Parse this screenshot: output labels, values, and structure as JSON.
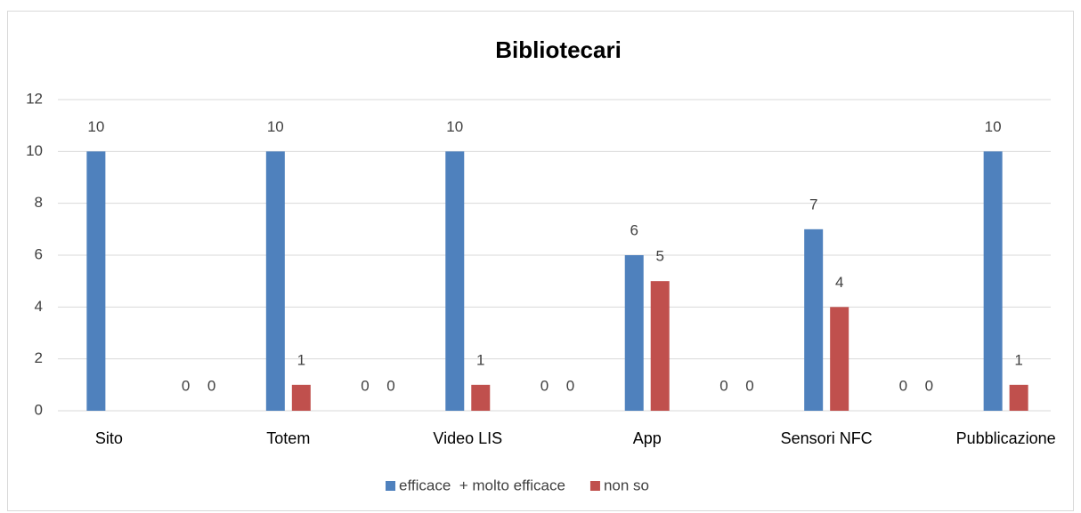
{
  "chart_data": {
    "type": "bar",
    "title": "Bibliotecari",
    "categories": [
      "Sito",
      null,
      "Totem",
      null,
      "Video LIS",
      null,
      "App",
      null,
      "Sensori NFC",
      null,
      "Pubblicazione"
    ],
    "series": [
      {
        "name": "efficace  + molto efficace",
        "color": "#4f81bd",
        "values": [
          10,
          0,
          10,
          0,
          10,
          0,
          6,
          0,
          7,
          0,
          10
        ]
      },
      {
        "name": "non so",
        "color": "#c0504d",
        "values": [
          null,
          0,
          1,
          0,
          1,
          0,
          5,
          0,
          4,
          0,
          1
        ]
      }
    ],
    "ylim": [
      0,
      12
    ],
    "yticks": [
      0,
      2,
      4,
      6,
      8,
      10,
      12
    ],
    "grid": true,
    "legend": "bottom"
  }
}
